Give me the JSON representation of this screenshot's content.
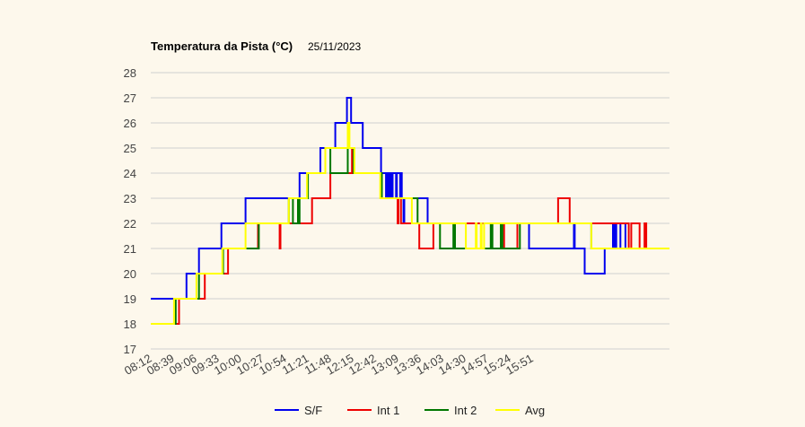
{
  "chart_data": {
    "type": "line",
    "title": "Temperatura da Pista (°C)",
    "subtitle": "25/11/2023",
    "ylim": [
      17,
      28
    ],
    "yticks": [
      17,
      18,
      19,
      20,
      21,
      22,
      23,
      24,
      25,
      26,
      27,
      28
    ],
    "xlim": [
      492,
      1116
    ],
    "x_tick_labels": [
      "08:12",
      "08:39",
      "09:06",
      "09:33",
      "10:00",
      "10:27",
      "10:54",
      "11:21",
      "11:48",
      "12:15",
      "12:42",
      "13:09",
      "13:36",
      "14:03",
      "14:30",
      "14:57",
      "15:24",
      "15:51"
    ],
    "grid": true,
    "legend": "bottom",
    "series": [
      {
        "name": "S/F",
        "color": "#0000ee",
        "points": [
          [
            492,
            19
          ],
          [
            532,
            19
          ],
          [
            535,
            20
          ],
          [
            548,
            20
          ],
          [
            550,
            21
          ],
          [
            575,
            21
          ],
          [
            577,
            22
          ],
          [
            604,
            22
          ],
          [
            606,
            23
          ],
          [
            670,
            23
          ],
          [
            671,
            24
          ],
          [
            694,
            24
          ],
          [
            696,
            25
          ],
          [
            712,
            25
          ],
          [
            714,
            26
          ],
          [
            727,
            26
          ],
          [
            728,
            27
          ],
          [
            732,
            27
          ],
          [
            733,
            26
          ],
          [
            746,
            26
          ],
          [
            747,
            25
          ],
          [
            768,
            25
          ],
          [
            769,
            24
          ],
          [
            774,
            24
          ],
          [
            775,
            23
          ],
          [
            776,
            24
          ],
          [
            777,
            23
          ],
          [
            778,
            24
          ],
          [
            779,
            23
          ],
          [
            780,
            24
          ],
          [
            782,
            23
          ],
          [
            783,
            24
          ],
          [
            786,
            24
          ],
          [
            787,
            23
          ],
          [
            788,
            24
          ],
          [
            791,
            24
          ],
          [
            792,
            23
          ],
          [
            793,
            24
          ],
          [
            794,
            23
          ],
          [
            795,
            23
          ],
          [
            796,
            22
          ],
          [
            797,
            23
          ],
          [
            824,
            23
          ],
          [
            825,
            22
          ],
          [
            945,
            22
          ],
          [
            947,
            21
          ],
          [
            1000,
            21
          ],
          [
            1001,
            22
          ],
          [
            1002,
            21
          ],
          [
            1013,
            21
          ],
          [
            1014,
            20
          ],
          [
            1037,
            20
          ],
          [
            1038,
            21
          ],
          [
            1047,
            21
          ],
          [
            1048,
            22
          ],
          [
            1049,
            21
          ],
          [
            1050,
            21
          ],
          [
            1051,
            22
          ],
          [
            1052,
            21
          ],
          [
            1056,
            21
          ],
          [
            1057,
            22
          ],
          [
            1062,
            22
          ],
          [
            1063,
            21
          ],
          [
            1116,
            21
          ]
        ]
      },
      {
        "name": "Int 1",
        "color": "#ee0000",
        "points": [
          [
            492,
            18
          ],
          [
            524,
            18
          ],
          [
            526,
            19
          ],
          [
            555,
            19
          ],
          [
            557,
            20
          ],
          [
            583,
            20
          ],
          [
            585,
            21
          ],
          [
            620,
            21
          ],
          [
            621,
            22
          ],
          [
            646,
            22
          ],
          [
            647,
            21
          ],
          [
            648,
            22
          ],
          [
            684,
            22
          ],
          [
            686,
            23
          ],
          [
            706,
            23
          ],
          [
            708,
            24
          ],
          [
            733,
            24
          ],
          [
            734,
            25
          ],
          [
            736,
            24
          ],
          [
            768,
            24
          ],
          [
            770,
            23
          ],
          [
            788,
            23
          ],
          [
            789,
            22
          ],
          [
            790,
            23
          ],
          [
            792,
            23
          ],
          [
            793,
            22
          ],
          [
            812,
            22
          ],
          [
            815,
            21
          ],
          [
            830,
            21
          ],
          [
            832,
            22
          ],
          [
            913,
            22
          ],
          [
            917,
            21
          ],
          [
            932,
            21
          ],
          [
            933,
            22
          ],
          [
            980,
            22
          ],
          [
            982,
            23
          ],
          [
            994,
            23
          ],
          [
            996,
            22
          ],
          [
            1056,
            22
          ],
          [
            1057,
            22
          ],
          [
            1066,
            22
          ],
          [
            1067,
            21
          ],
          [
            1070,
            22
          ],
          [
            1078,
            22
          ],
          [
            1080,
            21
          ],
          [
            1084,
            21
          ],
          [
            1086,
            22
          ],
          [
            1088,
            21
          ],
          [
            1116,
            21
          ]
        ]
      },
      {
        "name": "Int 2",
        "color": "#007700",
        "points": [
          [
            492,
            18
          ],
          [
            520,
            18
          ],
          [
            522,
            19
          ],
          [
            549,
            19
          ],
          [
            550,
            20
          ],
          [
            577,
            20
          ],
          [
            579,
            21
          ],
          [
            620,
            21
          ],
          [
            622,
            22
          ],
          [
            656,
            22
          ],
          [
            658,
            23
          ],
          [
            662,
            23
          ],
          [
            663,
            22
          ],
          [
            668,
            22
          ],
          [
            669,
            23
          ],
          [
            670,
            22
          ],
          [
            671,
            23
          ],
          [
            679,
            23
          ],
          [
            681,
            24
          ],
          [
            700,
            24
          ],
          [
            702,
            25
          ],
          [
            707,
            25
          ],
          [
            708,
            24
          ],
          [
            727,
            24
          ],
          [
            729,
            25
          ],
          [
            735,
            25
          ],
          [
            736,
            24
          ],
          [
            768,
            24
          ],
          [
            770,
            23
          ],
          [
            811,
            23
          ],
          [
            813,
            22
          ],
          [
            839,
            22
          ],
          [
            840,
            21
          ],
          [
            855,
            21
          ],
          [
            856,
            22
          ],
          [
            858,
            21
          ],
          [
            900,
            21
          ],
          [
            901,
            22
          ],
          [
            903,
            21
          ],
          [
            912,
            21
          ],
          [
            913,
            22
          ],
          [
            915,
            21
          ],
          [
            934,
            21
          ],
          [
            936,
            22
          ],
          [
            1020,
            22
          ],
          [
            1022,
            21
          ],
          [
            1116,
            21
          ]
        ]
      },
      {
        "name": "Avg",
        "color": "#ffff00",
        "points": [
          [
            492,
            18
          ],
          [
            518,
            18
          ],
          [
            520,
            19
          ],
          [
            545,
            19
          ],
          [
            547,
            20
          ],
          [
            576,
            20
          ],
          [
            578,
            21
          ],
          [
            604,
            21
          ],
          [
            606,
            22
          ],
          [
            656,
            22
          ],
          [
            658,
            23
          ],
          [
            678,
            23
          ],
          [
            680,
            24
          ],
          [
            700,
            24
          ],
          [
            702,
            25
          ],
          [
            728,
            25
          ],
          [
            729,
            26
          ],
          [
            731,
            25
          ],
          [
            736,
            25
          ],
          [
            737,
            24
          ],
          [
            766,
            24
          ],
          [
            768,
            23
          ],
          [
            804,
            23
          ],
          [
            806,
            22
          ],
          [
            870,
            22
          ],
          [
            871,
            21
          ],
          [
            882,
            21
          ],
          [
            883,
            22
          ],
          [
            884,
            21
          ],
          [
            888,
            21
          ],
          [
            889,
            22
          ],
          [
            890,
            21
          ],
          [
            892,
            21
          ],
          [
            893,
            22
          ],
          [
            953,
            22
          ],
          [
            1020,
            22
          ],
          [
            1022,
            21
          ],
          [
            1116,
            21
          ]
        ]
      }
    ]
  }
}
